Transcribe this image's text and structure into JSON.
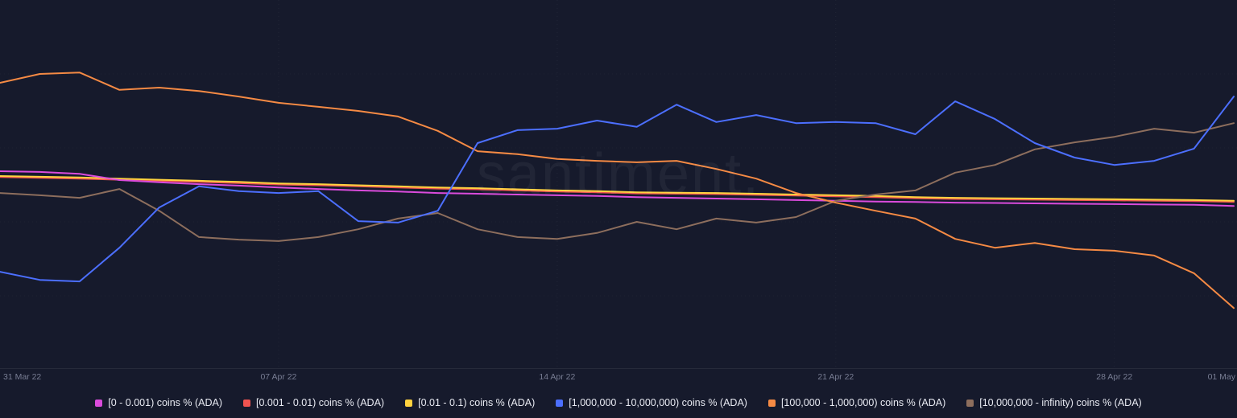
{
  "watermark": {
    "text": "santiment."
  },
  "axis": {
    "ticks": [
      {
        "pos": 0,
        "label": "31 Mar 22"
      },
      {
        "pos": 7,
        "label": "07 Apr 22"
      },
      {
        "pos": 14,
        "label": "14 Apr 22"
      },
      {
        "pos": 21,
        "label": "21 Apr 22"
      },
      {
        "pos": 28,
        "label": "28 Apr 22"
      },
      {
        "pos": 31,
        "label": "01 May"
      }
    ]
  },
  "chart_data": {
    "type": "line",
    "title": "",
    "xlabel": "",
    "ylabel": "",
    "x_unit": "days since 31 Mar 22",
    "x": [
      0,
      1,
      2,
      3,
      4,
      5,
      6,
      7,
      8,
      9,
      10,
      11,
      12,
      13,
      14,
      15,
      16,
      17,
      18,
      19,
      20,
      21,
      22,
      23,
      24,
      25,
      26,
      27,
      28,
      29,
      30,
      31
    ],
    "x_tick_labels": [
      "31 Mar 22",
      "07 Apr 22",
      "14 Apr 22",
      "21 Apr 22",
      "28 Apr 22",
      "01 May"
    ],
    "x_tick_positions": [
      0,
      7,
      14,
      21,
      28,
      31
    ],
    "ylim": [
      0,
      100
    ],
    "y_axis_visible": false,
    "grid": "faint dotted",
    "legend_position": "bottom-center",
    "series": [
      {
        "id": "range-0-0001",
        "label": "[0 - 0.001) coins % (ADA)",
        "color": "#da4bdc",
        "z": 3,
        "values": [
          53.7,
          53.5,
          53.0,
          51.3,
          50.7,
          50.2,
          49.8,
          49.3,
          48.9,
          48.5,
          48.2,
          47.8,
          47.6,
          47.4,
          47.2,
          47.0,
          46.7,
          46.5,
          46.3,
          46.1,
          45.9,
          45.7,
          45.5,
          45.4,
          45.2,
          45.1,
          45.0,
          44.9,
          44.8,
          44.7,
          44.6,
          44.3
        ]
      },
      {
        "id": "range-0001-001",
        "label": "[0.001 - 0.01) coins % (ADA)",
        "color": "#ef5350",
        "z": 1,
        "values": [
          52.1,
          51.9,
          51.7,
          51.4,
          51.1,
          50.8,
          50.5,
          50.1,
          49.9,
          49.6,
          49.3,
          49.0,
          48.8,
          48.5,
          48.2,
          48.0,
          47.7,
          47.6,
          47.5,
          47.3,
          47.1,
          46.9,
          46.7,
          46.4,
          46.2,
          46.1,
          46.0,
          45.9,
          45.8,
          45.7,
          45.6,
          45.4
        ]
      },
      {
        "id": "range-001-01",
        "label": "[0.01 - 0.1) coins % (ADA)",
        "color": "#ffd23f",
        "z": 2,
        "values": [
          52.4,
          52.2,
          52.0,
          51.7,
          51.4,
          51.1,
          50.8,
          50.4,
          50.2,
          49.9,
          49.6,
          49.3,
          49.1,
          48.8,
          48.5,
          48.3,
          48.0,
          47.9,
          47.8,
          47.6,
          47.4,
          47.2,
          47.0,
          46.7,
          46.5,
          46.4,
          46.3,
          46.2,
          46.1,
          46.0,
          45.9,
          45.7
        ]
      },
      {
        "id": "range-1m-10m",
        "label": "[1,000,000 - 10,000,000) coins % (ADA)",
        "color": "#4c6fff",
        "z": 6,
        "values": [
          26.5,
          24.3,
          23.9,
          33.0,
          43.9,
          49.6,
          48.3,
          47.8,
          48.3,
          40.2,
          39.8,
          43.0,
          61.3,
          64.8,
          65.2,
          67.4,
          65.7,
          71.7,
          67.0,
          68.9,
          66.7,
          67.0,
          66.7,
          63.7,
          72.6,
          67.8,
          61.3,
          57.4,
          55.4,
          56.5,
          59.8,
          73.9
        ]
      },
      {
        "id": "range-100k-1m",
        "label": "[100,000 - 1,000,000) coins % (ADA)",
        "color": "#f58a44",
        "z": 5,
        "values": [
          77.6,
          80.0,
          80.4,
          75.7,
          76.3,
          75.4,
          73.9,
          72.2,
          71.1,
          70.0,
          68.5,
          64.6,
          59.1,
          58.3,
          57.0,
          56.5,
          56.1,
          56.5,
          54.3,
          51.7,
          47.8,
          45.2,
          43.0,
          40.9,
          35.4,
          33.0,
          34.3,
          32.6,
          32.2,
          30.9,
          26.1,
          16.7
        ]
      },
      {
        "id": "range-10m-infinity",
        "label": "[10,000,000 - infinity) coins % (ADA)",
        "color": "#8d6e5d",
        "z": 4,
        "values": [
          47.8,
          47.2,
          46.5,
          48.9,
          43.0,
          35.9,
          35.2,
          34.8,
          35.9,
          38.0,
          40.9,
          42.4,
          38.0,
          35.9,
          35.4,
          37.0,
          40.0,
          38.0,
          40.9,
          39.8,
          41.3,
          45.7,
          47.4,
          48.5,
          53.3,
          55.4,
          59.6,
          61.5,
          63.0,
          65.2,
          64.1,
          66.7
        ]
      }
    ]
  }
}
